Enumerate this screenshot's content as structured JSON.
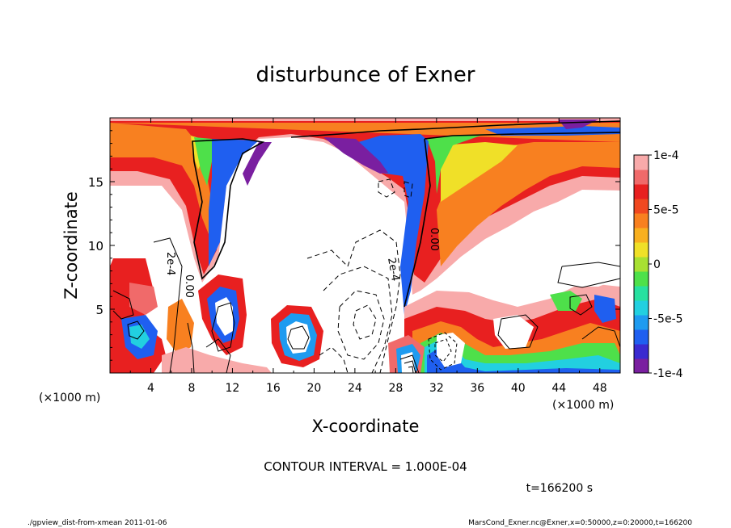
{
  "chart_data": {
    "type": "heatmap",
    "title": "disturbunce of Exner",
    "xlabel": "X-coordinate",
    "ylabel": "Z-coordinate",
    "x_unit": "(×1000 m)",
    "y_unit": "(×1000 m)",
    "xlim": [
      0,
      50
    ],
    "ylim": [
      0,
      20
    ],
    "x_ticks": [
      4,
      8,
      12,
      16,
      20,
      24,
      28,
      32,
      36,
      40,
      44,
      48
    ],
    "y_ticks": [
      5,
      10,
      15
    ],
    "colorbar": {
      "range": [
        -0.0001,
        0.0001
      ],
      "tick_values": [
        0.0001,
        5e-05,
        0,
        -5e-05,
        -0.0001
      ],
      "tick_labels": [
        "1e-4",
        "5e-5",
        "0",
        "-5e-5",
        "-1e-4"
      ],
      "colors": [
        "#7a1fa0",
        "#3a2ad0",
        "#1f5ff0",
        "#1e9bf0",
        "#22d0e0",
        "#27e0a0",
        "#4ee04a",
        "#a8e032",
        "#f0e028",
        "#f8b020",
        "#f88020",
        "#f04820",
        "#e82020",
        "#f06a6a",
        "#f8aaaa"
      ]
    },
    "contour_interval": "CONTOUR INTERVAL = 1.000E-04",
    "contour_labels": [
      "2e-4",
      "0.00",
      "2e-4",
      "0.00"
    ],
    "time_label": "t=166200 s"
  },
  "footer": {
    "left": "./gpview_dist-from-xmean  2011-01-06",
    "right": "MarsCond_Exner.nc@Exner,x=0:50000,z=0:20000,t=166200"
  }
}
